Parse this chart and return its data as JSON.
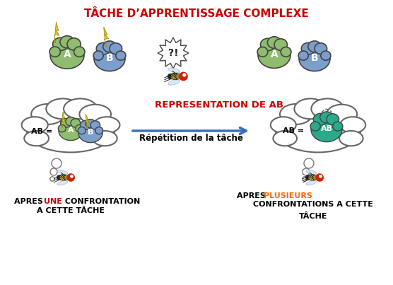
{
  "title": "TÂCHE D’APPRENTISSAGE COMPLEXE",
  "title_color": "#cc0000",
  "title_fontsize": 11,
  "bg_color": "#ffffff",
  "scent_A_color": "#8fbc6e",
  "scent_B_color": "#7b9ecc",
  "scent_AB_left_A_color": "#8fbc6e",
  "scent_AB_left_B_color": "#7b9ecc",
  "scent_AB_right_color": "#2aaa8a",
  "arrow_color": "#3a6fbe",
  "label_left_une_color": "#cc0000",
  "label_right_plusieurs_color": "#ff6600",
  "rep_ab_title": "REPRESENTATION DE AB",
  "rep_ab_color": "#cc0000",
  "rep_ab_fontsize": 9.5,
  "rep_task_text": "Répétition de la tâche",
  "rep_task_fontsize": 8.5,
  "lightning_color": "#f0c020",
  "cloud_edge_color": "#666666",
  "thought_edge_color": "#888888"
}
